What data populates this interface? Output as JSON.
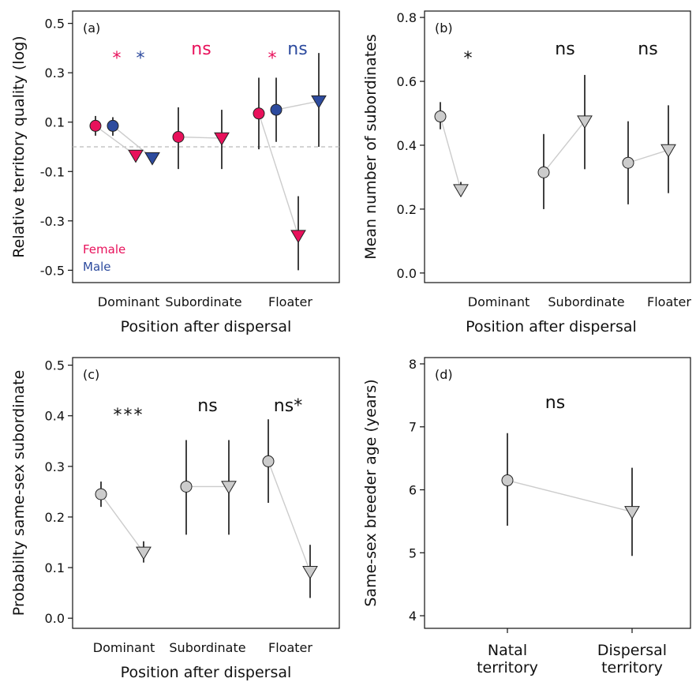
{
  "colors": {
    "female": "#e8115b",
    "male": "#2d4b9e",
    "grey": "#cccccc",
    "line": "#cccccc",
    "dash": "#bbbbbb"
  },
  "chart_data": [
    {
      "panel": "(a)",
      "type": "scatter",
      "ylabel": "Relative territory quality (log)",
      "xlabel": "Position after dispersal",
      "ylim": [
        -0.55,
        0.55
      ],
      "yticks": [
        "-0.5",
        "-0.3",
        "-0.1",
        "0.1",
        "0.3",
        "0.5"
      ],
      "categories": [
        "Dominant",
        "Subordinate",
        "Floater"
      ],
      "reference_line": 0,
      "legend": [
        "Female",
        "Male"
      ],
      "series": [
        {
          "name": "Female",
          "group": 0,
          "color": "female",
          "values": [
            {
              "before": 0.085,
              "before_err": [
                0.045,
                0.125
              ],
              "after": -0.035,
              "after_err": [
                -0.055,
                -0.015
              ]
            },
            {
              "before": 0.04,
              "before_err": [
                -0.09,
                0.16
              ],
              "after": 0.035,
              "after_err": [
                -0.09,
                0.15
              ]
            },
            {
              "before": 0.135,
              "before_err": [
                -0.01,
                0.28
              ],
              "after": -0.36,
              "after_err": [
                -0.5,
                -0.2
              ]
            }
          ]
        },
        {
          "name": "Male",
          "group": 1,
          "color": "male",
          "values": [
            {
              "before": 0.085,
              "before_err": [
                0.045,
                0.12
              ],
              "after": -0.045,
              "after_err": [
                -0.065,
                -0.025
              ]
            },
            null,
            {
              "before": 0.15,
              "before_err": [
                0.02,
                0.28
              ],
              "after": 0.185,
              "after_err": [
                0.0,
                0.38
              ]
            }
          ]
        }
      ],
      "significance": [
        [
          {
            "text": "*",
            "color": "female"
          },
          {
            "text": "*",
            "color": "male"
          }
        ],
        [
          {
            "text": "ns",
            "color": "female"
          }
        ],
        [
          {
            "text": "*",
            "color": "female"
          },
          {
            "text": "ns",
            "color": "male"
          }
        ]
      ]
    },
    {
      "panel": "(b)",
      "type": "scatter",
      "ylabel": "Mean number of subordinates",
      "xlabel": "Position after dispersal",
      "ylim": [
        -0.03,
        0.82
      ],
      "yticks": [
        "0.0",
        "0.2",
        "0.4",
        "0.6",
        "0.8"
      ],
      "categories": [
        "Dominant",
        "Subordinate",
        "Floater"
      ],
      "series": [
        {
          "color": "grey",
          "values": [
            {
              "before": 0.49,
              "before_err": [
                0.45,
                0.535
              ],
              "after": 0.26,
              "after_err": [
                0.24,
                0.285
              ]
            },
            {
              "before": 0.315,
              "before_err": [
                0.2,
                0.435
              ],
              "after": 0.475,
              "after_err": [
                0.325,
                0.62
              ]
            },
            {
              "before": 0.345,
              "before_err": [
                0.215,
                0.475
              ],
              "after": 0.385,
              "after_err": [
                0.25,
                0.525
              ]
            }
          ]
        }
      ],
      "significance": [
        [
          {
            "text": "*"
          }
        ],
        [
          {
            "text": "ns"
          }
        ],
        [
          {
            "text": "ns"
          }
        ]
      ]
    },
    {
      "panel": "(c)",
      "type": "scatter",
      "ylabel": "Probabilty same-sex subordinate",
      "xlabel": "Position after dispersal",
      "ylim": [
        -0.02,
        0.515
      ],
      "yticks": [
        "0.0",
        "0.1",
        "0.2",
        "0.3",
        "0.4",
        "0.5"
      ],
      "categories": [
        "Dominant",
        "Subordinate",
        "Floater"
      ],
      "series": [
        {
          "color": "grey",
          "values": [
            {
              "before": 0.245,
              "before_err": [
                0.22,
                0.27
              ],
              "after": 0.13,
              "after_err": [
                0.11,
                0.152
              ]
            },
            {
              "before": 0.26,
              "before_err": [
                0.165,
                0.352
              ],
              "after": 0.26,
              "after_err": [
                0.165,
                0.352
              ]
            },
            {
              "before": 0.31,
              "before_err": [
                0.228,
                0.393
              ],
              "after": 0.092,
              "after_err": [
                0.04,
                0.145
              ]
            }
          ]
        }
      ],
      "significance": [
        [
          {
            "text": "***"
          }
        ],
        [
          {
            "text": "ns"
          }
        ],
        [
          {
            "text": "ns*"
          }
        ]
      ]
    },
    {
      "panel": "(d)",
      "type": "scatter",
      "ylabel": "Same-sex breeder age (years)",
      "xlabel": "",
      "ylim": [
        3.8,
        8.1
      ],
      "yticks": [
        "4",
        "5",
        "6",
        "7",
        "8"
      ],
      "categories": [
        "Natal\nterritory",
        "Dispersal\nterritory"
      ],
      "points": [
        {
          "value": 6.15,
          "err": [
            5.43,
            6.9
          ],
          "shape": "circle"
        },
        {
          "value": 5.65,
          "err": [
            4.95,
            6.35
          ],
          "shape": "triangle"
        }
      ],
      "significance": "ns"
    }
  ]
}
